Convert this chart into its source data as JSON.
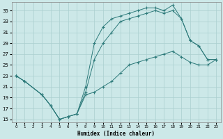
{
  "xlabel": "Humidex (Indice chaleur)",
  "bg_color": "#cce8e8",
  "line_color": "#2d7a7a",
  "grid_color": "#aacfcf",
  "xlim": [
    -0.5,
    23.5
  ],
  "ylim": [
    14.5,
    36.5
  ],
  "yticks": [
    15,
    17,
    19,
    21,
    23,
    25,
    27,
    29,
    31,
    33,
    35
  ],
  "xticks": [
    0,
    1,
    2,
    3,
    4,
    5,
    6,
    7,
    8,
    9,
    10,
    11,
    12,
    13,
    14,
    15,
    16,
    17,
    18,
    19,
    20,
    21,
    22,
    23
  ],
  "l1x": [
    0,
    1,
    3,
    4,
    5,
    6,
    7,
    8,
    9,
    10,
    11,
    12,
    13,
    14,
    15,
    16,
    17,
    18,
    19,
    20,
    21,
    22,
    23
  ],
  "l1y": [
    23,
    22,
    19.5,
    17.5,
    15,
    15.5,
    16,
    21,
    29,
    32,
    33.5,
    34,
    34.5,
    35,
    35.5,
    35.5,
    35,
    36,
    33.5,
    29.5,
    28.5,
    26,
    26
  ],
  "l2x": [
    0,
    1,
    3,
    4,
    5,
    6,
    7,
    8,
    9,
    10,
    11,
    12,
    13,
    14,
    15,
    16,
    17,
    18,
    19,
    20,
    21,
    22,
    23
  ],
  "l2y": [
    23,
    22,
    19.5,
    17.5,
    15,
    15.5,
    16,
    20,
    26,
    29,
    31,
    33,
    33.5,
    34,
    34.5,
    35,
    34.5,
    35,
    33.5,
    29.5,
    28.5,
    26,
    26
  ],
  "l3x": [
    0,
    1,
    3,
    4,
    5,
    6,
    7,
    8,
    9,
    10,
    11,
    12,
    13,
    14,
    15,
    16,
    17,
    18,
    19,
    20,
    21,
    22,
    23
  ],
  "l3y": [
    23,
    22,
    19.5,
    17.5,
    15,
    15.5,
    16,
    19.5,
    20,
    21,
    22,
    23.5,
    25,
    25.5,
    26,
    26.5,
    27,
    27.5,
    26.5,
    25.5,
    25,
    25,
    26
  ]
}
